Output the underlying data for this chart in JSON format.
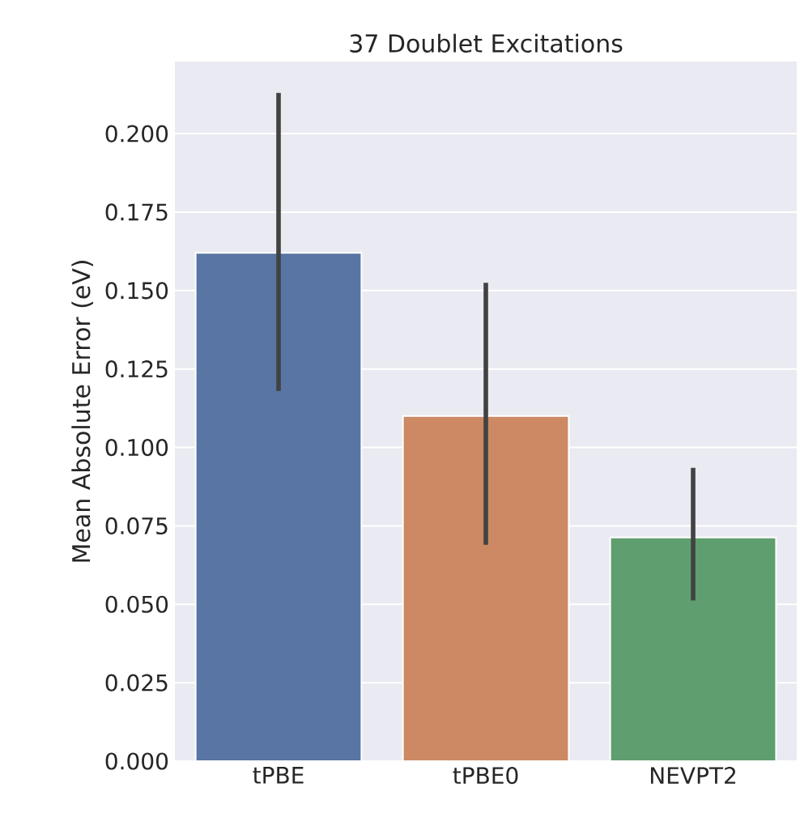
{
  "chart_data": {
    "type": "bar",
    "title": "37 Doublet Excitations",
    "ylabel": "Mean Absolute Error (eV)",
    "categories": [
      "tPBE",
      "tPBE0",
      "NEVPT2"
    ],
    "values": [
      0.162,
      0.11,
      0.0713
    ],
    "colors": [
      "#5875a4",
      "#cc8963",
      "#5f9e6e"
    ],
    "errors": [
      [
        0.118,
        0.213
      ],
      [
        0.069,
        0.1525
      ],
      [
        0.0512,
        0.0935
      ]
    ],
    "ylim": [
      0,
      0.223
    ],
    "yticks": [
      {
        "value": 0,
        "label": "0.000"
      },
      {
        "value": 0.025,
        "label": "0.025"
      },
      {
        "value": 0.05,
        "label": "0.050"
      },
      {
        "value": 0.075,
        "label": "0.075"
      },
      {
        "value": 0.1,
        "label": "0.100"
      },
      {
        "value": 0.125,
        "label": "0.125"
      },
      {
        "value": 0.15,
        "label": "0.150"
      },
      {
        "value": 0.175,
        "label": "0.175"
      },
      {
        "value": 0.2,
        "label": "0.200"
      }
    ],
    "grid": "y"
  }
}
